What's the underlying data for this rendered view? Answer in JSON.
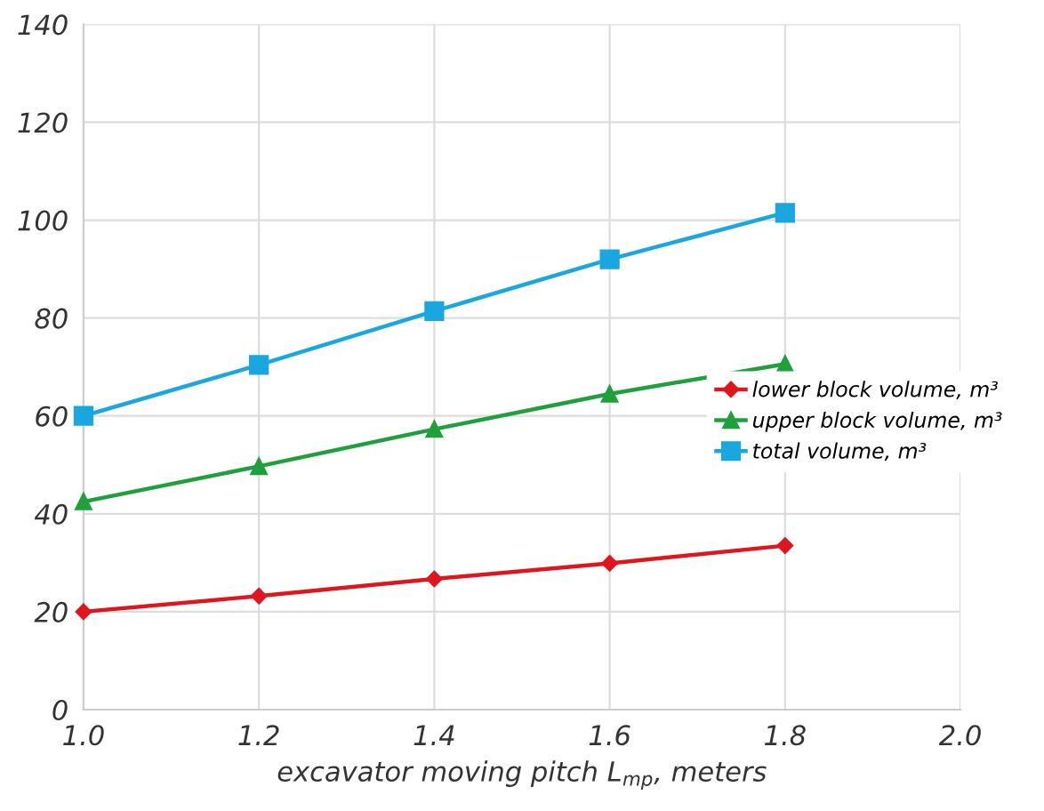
{
  "chart_data": {
    "type": "line",
    "xlabel": "excavator moving pitch L$_{mp}$, meters",
    "x": [
      1.0,
      1.2,
      1.4,
      1.6,
      1.8
    ],
    "series": [
      {
        "name": "lower block volume, m³",
        "color": "#e0161e",
        "marker": "diamond",
        "values": [
          20,
          23.2,
          26.7,
          29.9,
          33.5
        ]
      },
      {
        "name": "upper block volume, m³",
        "color": "#1fa03c",
        "marker": "triangle",
        "values": [
          42.5,
          49.7,
          57.3,
          64.5,
          70.6
        ]
      },
      {
        "name": "total volume, m³",
        "color": "#1aa7e0",
        "marker": "square",
        "values": [
          60,
          70.4,
          81.4,
          92,
          101.5
        ]
      }
    ],
    "xlim": [
      1.0,
      2.0
    ],
    "xticks": [
      {
        "value": 1.0,
        "label": "1.0"
      },
      1.2,
      1.4,
      1.6,
      1.8,
      {
        "value": 2.0,
        "label": "2.0"
      }
    ],
    "ylim": [
      0,
      140
    ],
    "yticks": [
      0,
      20,
      40,
      60,
      80,
      100,
      120,
      140
    ],
    "grid": true,
    "legend": "right"
  }
}
